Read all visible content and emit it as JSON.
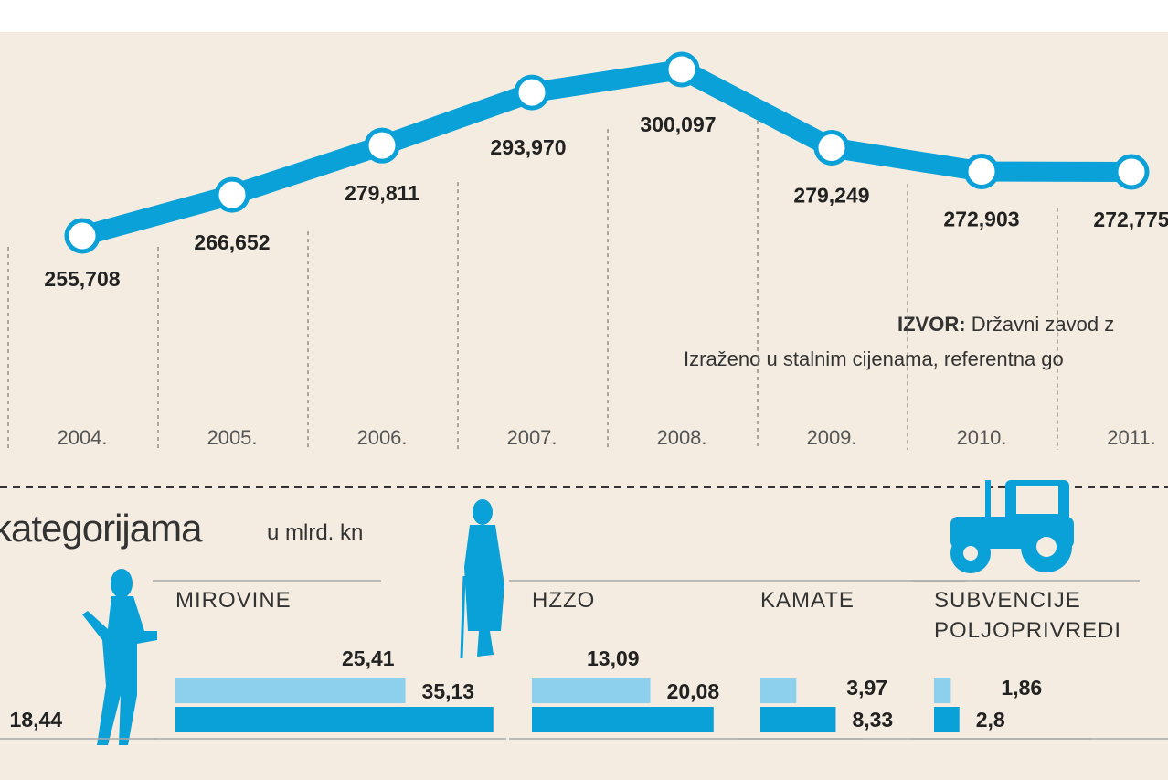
{
  "chart_data": [
    {
      "type": "line",
      "categories": [
        "2004.",
        "2005.",
        "2006.",
        "2007.",
        "2008.",
        "2009.",
        "2010.",
        "2011."
      ],
      "values": [
        255.708,
        266.652,
        279.811,
        293.97,
        300.097,
        279.249,
        272.903,
        272.775
      ],
      "value_labels": [
        "255,708",
        "266,652",
        "279,811",
        "293,970",
        "300,097",
        "279,249",
        "272,903",
        "272,775"
      ],
      "color": "#0aa0d8",
      "ylim": [
        240,
        310
      ],
      "source_label": "IZVOR:",
      "source": "Državni zavod z",
      "note": "Izraženo u stalnim cijenama, referentna go"
    },
    {
      "type": "bar",
      "title": "kategorijama",
      "subtitle": "u mlrd. kn",
      "colors": [
        "#8dd0ee",
        "#0aa0d8"
      ],
      "groups": [
        {
          "name": null,
          "values": [
            null,
            18.44
          ],
          "value_labels": [
            null,
            "18,44"
          ]
        },
        {
          "name": "MIROVINE",
          "values": [
            25.41,
            35.13
          ],
          "value_labels": [
            "25,41",
            "35,13"
          ]
        },
        {
          "name": "HZZO",
          "values": [
            13.09,
            20.08
          ],
          "value_labels": [
            "13,09",
            "20,08"
          ]
        },
        {
          "name": "KAMATE",
          "values": [
            3.97,
            8.33
          ],
          "value_labels": [
            "3,97",
            "8,33"
          ]
        },
        {
          "name": "SUBVENCIJE POLJOPRIVREDI",
          "values": [
            1.86,
            2.8
          ],
          "value_labels": [
            "1,86",
            "2,8"
          ]
        }
      ]
    }
  ]
}
